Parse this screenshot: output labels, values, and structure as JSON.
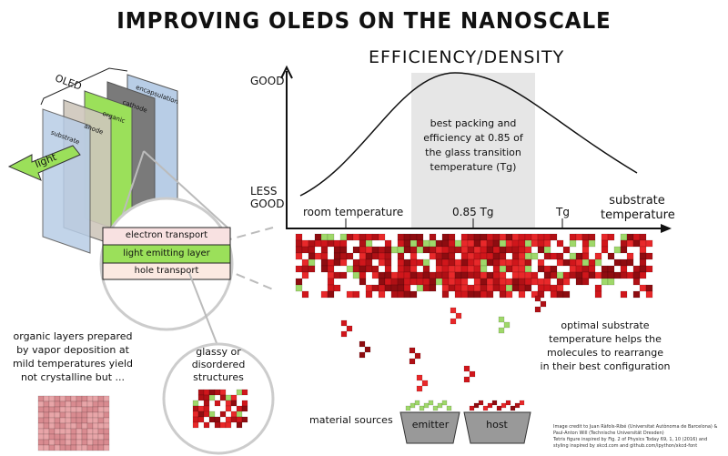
{
  "title": "IMPROVING OLEDS ON THE NANOSCALE",
  "chart": {
    "title": "EFFICIENCY/DENSITY",
    "y_top_label": "GOOD",
    "y_bottom_label": [
      "LESS",
      "GOOD"
    ],
    "x_ticks": [
      "room temperature",
      "0.85 Tg",
      "Tg"
    ],
    "x_label": [
      "substrate",
      "temperature"
    ],
    "highlight_text": [
      "best packing and",
      "efficiency at 0.85 of",
      "the glass transition",
      "temperature (Tg)"
    ],
    "highlight_color": "#e6e6e6"
  },
  "oled": {
    "bracket_label": "OLED",
    "layers": [
      "substrate",
      "anode",
      "organic",
      "cathode",
      "encapsulation"
    ],
    "light_label": "light",
    "organic_layers": [
      "electron transport",
      "light emitting layer",
      "hole transport"
    ]
  },
  "left_note": [
    "organic layers prepared",
    "by vapor deposition at",
    "mild temperatures yield",
    "not crystalline but ..."
  ],
  "glassy_label": [
    "glassy or",
    "disordered",
    "structures"
  ],
  "right_note": [
    "optimal substrate",
    "temperature helps the",
    "molecules to rearrange",
    "in their best configuration"
  ],
  "sources": {
    "label": "material sources",
    "emitter": "emitter",
    "host": "host"
  },
  "credit": [
    "Image credit to Juan Ràfols-Ribé (Universitat Autònoma de Barcelona) &",
    "Paul-Anton Will (Technische Universität Dresden)",
    "Tetris figure inspired by Fig. 2 of Physics Today 69, 1, 10 (2016) and",
    "styling inspired by xkcd.com and github.com/ipython/xkcd-font"
  ],
  "colors": {
    "host": "#d0161b",
    "host_dark": "#8e0c10",
    "emitter": "#9fd86a",
    "organic": "#9be05a",
    "substrate": "#b8cde6",
    "cathode": "#7a7a7a",
    "anode": "#cfc7bc"
  }
}
